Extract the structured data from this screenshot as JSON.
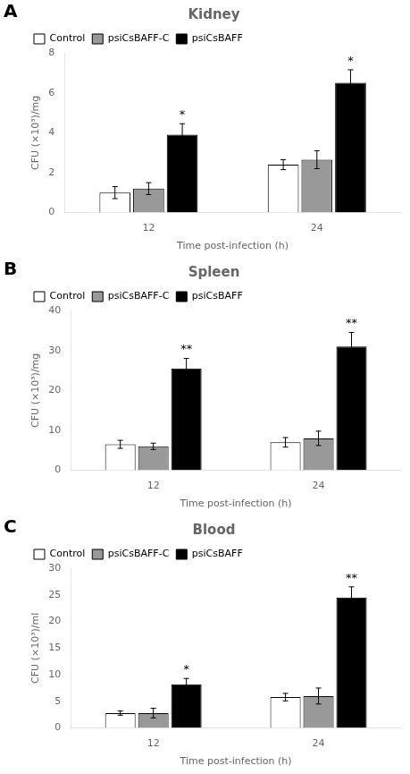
{
  "chart_data": [
    {
      "type": "bar",
      "panel_label": "A",
      "title": "Kidney",
      "xlabel": "Time post-infection (h)",
      "ylabel": "CFU (×10³)/mg",
      "categories": [
        "12",
        "24"
      ],
      "series": [
        {
          "name": "Control",
          "color": "#ffffff",
          "values": [
            1.0,
            2.4
          ],
          "errors": [
            0.3,
            0.25
          ]
        },
        {
          "name": "psiCsBAFF-C",
          "color": "#999999",
          "values": [
            1.2,
            2.65
          ],
          "errors": [
            0.3,
            0.45
          ]
        },
        {
          "name": "psiCsBAFF",
          "color": "#000000",
          "values": [
            3.9,
            6.5
          ],
          "errors": [
            0.55,
            0.65
          ]
        }
      ],
      "annotations": [
        {
          "text": "*",
          "series": "psiCsBAFF",
          "category": "12"
        },
        {
          "text": "*",
          "series": "psiCsBAFF",
          "category": "24"
        }
      ],
      "ylim": [
        0,
        8
      ],
      "yticks": [
        0,
        2,
        4,
        6,
        8
      ],
      "grid": false,
      "legend": "upper left"
    },
    {
      "type": "bar",
      "panel_label": "B",
      "title": "Spleen",
      "xlabel": "Time post-infection (h)",
      "ylabel": "CFU (×10³)/mg",
      "categories": [
        "12",
        "24"
      ],
      "series": [
        {
          "name": "Control",
          "color": "#ffffff",
          "values": [
            6.5,
            7.0
          ],
          "errors": [
            1.0,
            1.2
          ]
        },
        {
          "name": "psiCsBAFF-C",
          "color": "#999999",
          "values": [
            6.0,
            8.0
          ],
          "errors": [
            0.8,
            1.8
          ]
        },
        {
          "name": "psiCsBAFF",
          "color": "#000000",
          "values": [
            25.5,
            31.0
          ],
          "errors": [
            2.5,
            3.5
          ]
        }
      ],
      "annotations": [
        {
          "text": "**",
          "series": "psiCsBAFF",
          "category": "12"
        },
        {
          "text": "**",
          "series": "psiCsBAFF",
          "category": "24"
        }
      ],
      "ylim": [
        0,
        40
      ],
      "yticks": [
        0,
        10,
        20,
        30,
        40
      ],
      "grid": false,
      "legend": "upper left"
    },
    {
      "type": "bar",
      "panel_label": "C",
      "title": "Blood",
      "xlabel": "Time post-infection (h)",
      "ylabel": "CFU (×10³)/ml",
      "categories": [
        "12",
        "24"
      ],
      "series": [
        {
          "name": "Control",
          "color": "#ffffff",
          "values": [
            2.8,
            5.8
          ],
          "errors": [
            0.4,
            0.7
          ]
        },
        {
          "name": "psiCsBAFF-C",
          "color": "#999999",
          "values": [
            2.8,
            6.0
          ],
          "errors": [
            0.9,
            1.5
          ]
        },
        {
          "name": "psiCsBAFF",
          "color": "#000000",
          "values": [
            8.2,
            24.5
          ],
          "errors": [
            1.1,
            2.0
          ]
        }
      ],
      "annotations": [
        {
          "text": "*",
          "series": "psiCsBAFF",
          "category": "12"
        },
        {
          "text": "**",
          "series": "psiCsBAFF",
          "category": "24"
        }
      ],
      "ylim": [
        0,
        30
      ],
      "yticks": [
        0,
        5,
        10,
        15,
        20,
        25,
        30
      ],
      "grid": false,
      "legend": "upper left"
    }
  ]
}
